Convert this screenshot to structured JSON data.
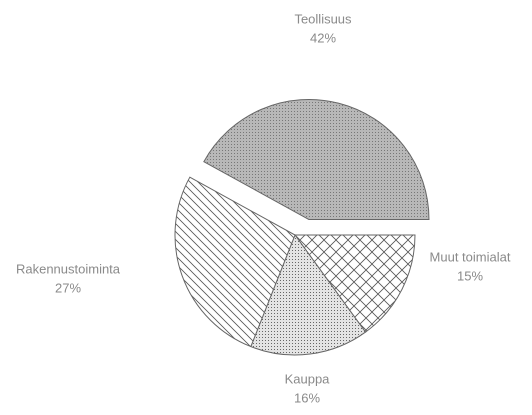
{
  "chart_data": {
    "type": "pie",
    "categories": [
      "Teollisuus",
      "Muut toimialat",
      "Kauppa",
      "Rakennustoiminta"
    ],
    "values": [
      42,
      15,
      16,
      27
    ],
    "value_labels": [
      "42%",
      "15%",
      "16%",
      "27%"
    ],
    "colors": [
      "#b8b8b8",
      "#ffffff",
      "#e4e4e4",
      "#ffffff"
    ]
  }
}
